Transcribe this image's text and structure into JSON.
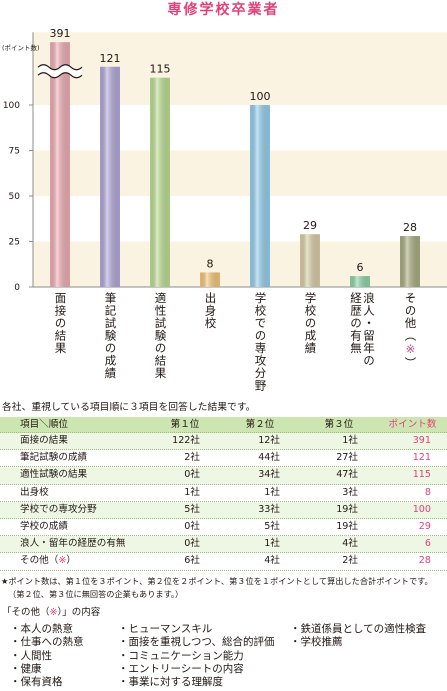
{
  "colors": {
    "accent": "#E2417B",
    "text": "#231815",
    "table_header": "#CDE5B0",
    "table_row_tint": "#EEF6E4",
    "table_rule": "#9DBE7E",
    "axis": "#8C8C8C"
  },
  "chart_data": {
    "type": "bar",
    "title": "専修学校卒業者",
    "ylabel": "(ポイント数)",
    "ylim": [
      0,
      140
    ],
    "yticks": [
      0,
      25,
      50,
      75,
      100
    ],
    "axis_break": true,
    "categories": [
      "面接の結果",
      "筆記試験の成績",
      "適性試験の結果",
      "出身校",
      "学校での専攻分野",
      "学校の成績",
      "浪人・留年の経歴の有無",
      "その他（※）"
    ],
    "values": [
      391,
      121,
      115,
      8,
      100,
      29,
      6,
      28
    ],
    "colors": [
      "#F2AEB6",
      "#B4A9DC",
      "#BDE093",
      "#F6C879",
      "#95D0EF",
      "#DCCFA7",
      "#8ED5A8",
      "#A9AF80"
    ],
    "band_colors": [
      "#FBF3E1",
      "#FFFFFF"
    ]
  },
  "note": "各社、重視している項目順に３項目を回答した結果です。",
  "table": {
    "headers": {
      "item": "項目＼順位",
      "first": "第１位",
      "second": "第２位",
      "third": "第３位",
      "points": "ポイント数"
    },
    "rows": [
      {
        "item": "面接の結果",
        "first": "122社",
        "second": "12社",
        "third": "1社",
        "points": "391"
      },
      {
        "item": "筆記試験の成績",
        "first": "2社",
        "second": "44社",
        "third": "27社",
        "points": "121"
      },
      {
        "item": "適性試験の結果",
        "first": "0社",
        "second": "34社",
        "third": "47社",
        "points": "115"
      },
      {
        "item": "出身校",
        "first": "1社",
        "second": "1社",
        "third": "3社",
        "points": "8"
      },
      {
        "item": "学校での専攻分野",
        "first": "5社",
        "second": "33社",
        "third": "19社",
        "points": "100"
      },
      {
        "item": "学校の成績",
        "first": "0社",
        "second": "5社",
        "third": "19社",
        "points": "29"
      },
      {
        "item": "浪人・留年の経歴の有無",
        "first": "0社",
        "second": "1社",
        "third": "4社",
        "points": "6"
      },
      {
        "item": "その他（※）",
        "first": "6社",
        "second": "4社",
        "third": "2社",
        "points": "28"
      }
    ]
  },
  "footnote": {
    "line1": "★ポイント数は、第１位を３ポイント、第２位を２ポイント、第３位を１ポイントとして算出した合計ポイントです。",
    "line2": "（第２位、第３位に無回答の企業もあります。）"
  },
  "other": {
    "heading": "「その他（※）」の内容",
    "columns": [
      [
        "・本人の熱意",
        "・仕事への熱意",
        "・人間性",
        "・健康",
        "・保有資格"
      ],
      [
        "・ヒューマンスキル",
        "・面接を重視しつつ、総合的評価",
        "・コミュニケーション能力",
        "・エントリーシートの内容",
        "・事業に対する理解度"
      ],
      [
        "・鉄道係員としての適性検査",
        "・学校推薦"
      ]
    ]
  }
}
